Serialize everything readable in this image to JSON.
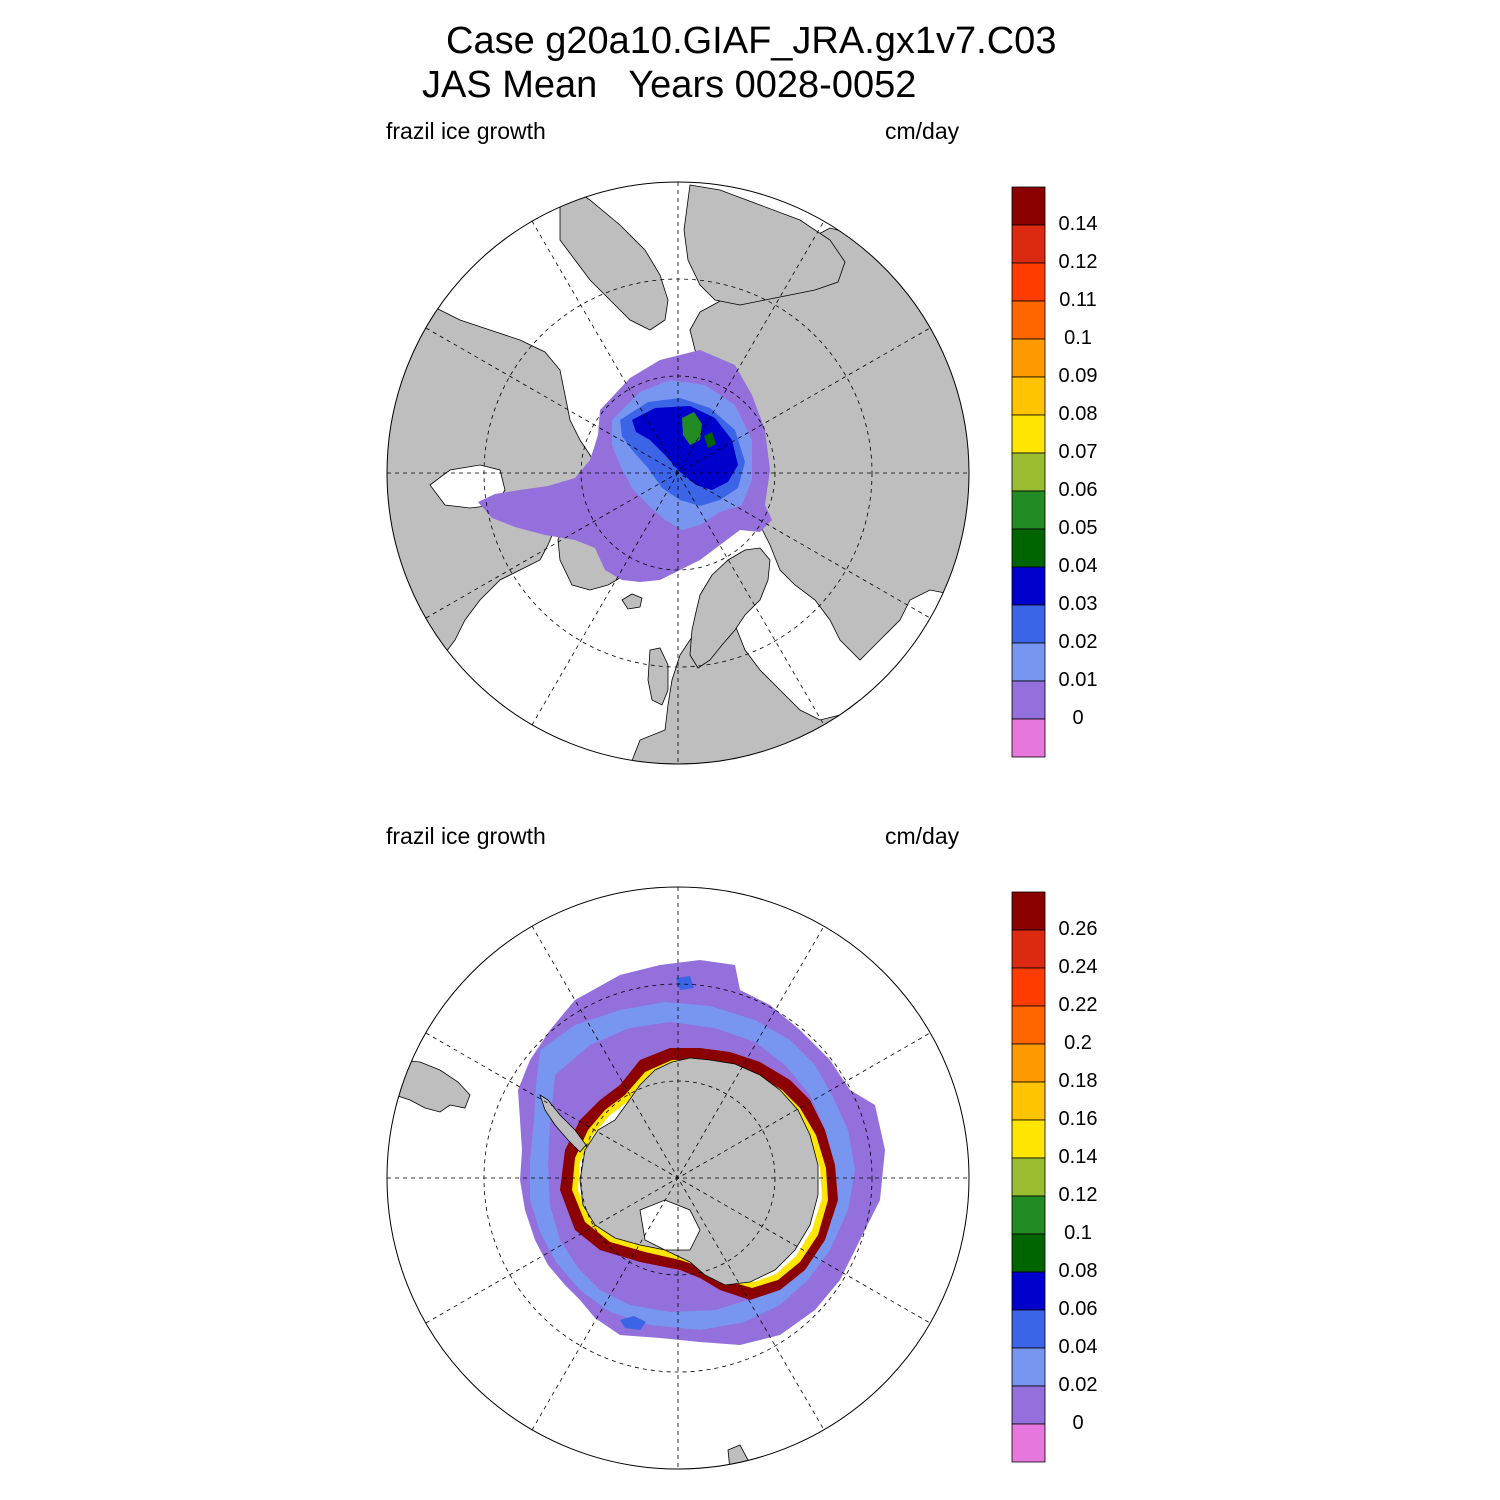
{
  "title": {
    "line1": "Case g20a10.GIAF_JRA.gx1v7.C03",
    "season": "JAS Mean",
    "years": "Years 0028-0052"
  },
  "panels": [
    {
      "id": "north",
      "hemisphere": "Northern Hemisphere (polar stereographic)",
      "left_label": "frazil ice growth",
      "right_label": "cm/day",
      "colorbar": {
        "levels": [
          "0.14",
          "0.12",
          "0.11",
          "0.1",
          "0.09",
          "0.08",
          "0.07",
          "0.06",
          "0.05",
          "0.04",
          "0.03",
          "0.02",
          "0.01",
          "0"
        ]
      }
    },
    {
      "id": "south",
      "hemisphere": "Southern Hemisphere (polar stereographic)",
      "left_label": "frazil ice growth",
      "right_label": "cm/day",
      "colorbar": {
        "levels": [
          "0.26",
          "0.24",
          "0.22",
          "0.2",
          "0.18",
          "0.16",
          "0.14",
          "0.12",
          "0.1",
          "0.08",
          "0.06",
          "0.04",
          "0.02",
          "0"
        ]
      }
    }
  ],
  "colors": {
    "palette_top_to_bottom": [
      "#8b0000",
      "#dc2a12",
      "#ff3c00",
      "#ff6600",
      "#ff9900",
      "#ffc300",
      "#ffe600",
      "#9bbd31",
      "#238b23",
      "#006400",
      "#0000cd",
      "#3c64e6",
      "#7896f0",
      "#9370db",
      "#e677dc"
    ],
    "land": "#bebebe",
    "ocean": "#ffffff"
  }
}
